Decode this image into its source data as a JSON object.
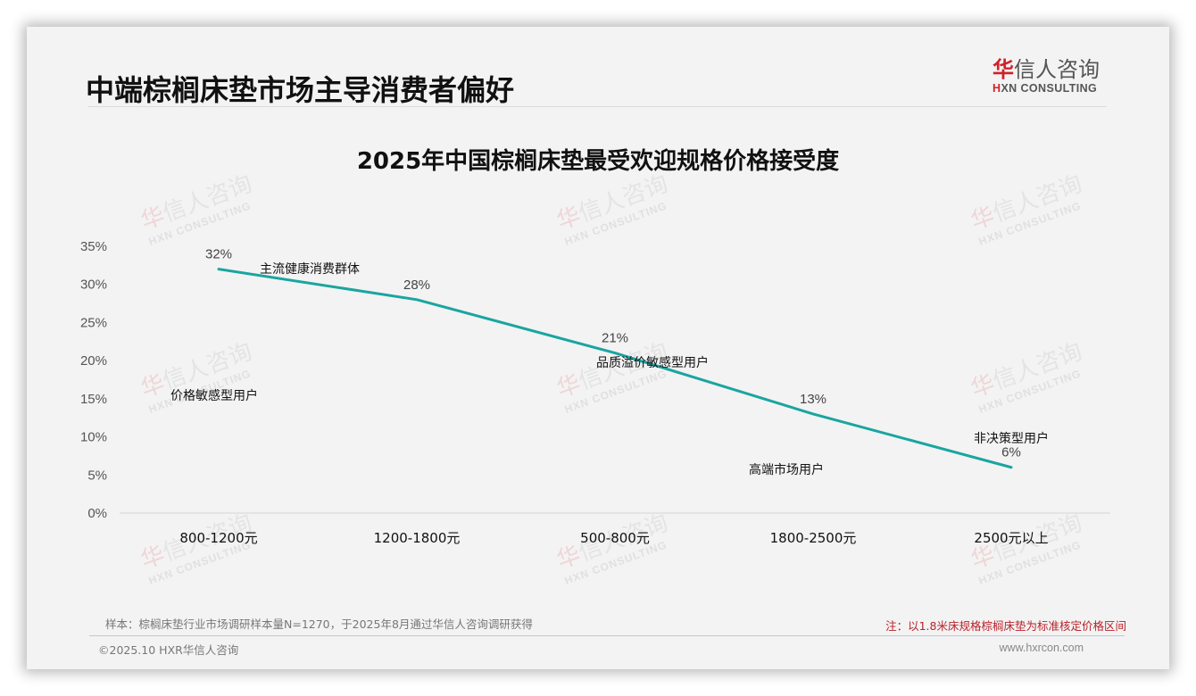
{
  "header": {
    "page_title": "中端棕榈床垫市场主导消费者偏好",
    "logo": {
      "cn_first": "华",
      "cn_rest": "信人咨询",
      "en_prefix": "H",
      "en_rest": "XN CONSULTING"
    }
  },
  "watermark": {
    "cn_first": "华",
    "cn_rest": "信人咨询",
    "en": "HXN CONSULTING"
  },
  "chart_data": {
    "type": "line",
    "title": "2025年中国棕榈床垫最受欢迎规格价格接受度",
    "xlabel": "",
    "ylabel": "",
    "categories": [
      "800-1200元",
      "1200-1800元",
      "500-800元",
      "1800-2500元",
      "2500元以上"
    ],
    "series": [
      {
        "name": "价格接受度",
        "values": [
          32,
          28,
          21,
          13,
          6
        ],
        "color": "#1aa5a0"
      }
    ],
    "data_labels": [
      "32%",
      "28%",
      "21%",
      "13%",
      "6%"
    ],
    "yticks": [
      "0%",
      "5%",
      "10%",
      "15%",
      "20%",
      "25%",
      "30%",
      "35%"
    ],
    "ylim": [
      0,
      35
    ],
    "grid": false,
    "legend": "none",
    "annotations": [
      {
        "text": "价格敏感型用户",
        "category": "800-1200元"
      },
      {
        "text": "主流健康消费群体",
        "category": "1200-1800元"
      },
      {
        "text": "品质溢价敏感型用户",
        "category": "500-800元"
      },
      {
        "text": "高端市场用户",
        "category": "1800-2500元"
      },
      {
        "text": "非决策型用户",
        "category": "2500元以上"
      }
    ]
  },
  "footer": {
    "sample_note": "样本：棕榈床垫行业市场调研样本量N=1270，于2025年8月通过华信人咨询调研获得",
    "red_note": "注：以1.8米床规格棕榈床垫为标准核定价格区间",
    "copyright": "©2025.10 HXR华信人咨询",
    "website": "www.hxrcon.com"
  },
  "colors": {
    "line": "#1aa5a0",
    "accent_red": "#d0202a",
    "note_red": "#b8222a",
    "background": "#f3f3f3"
  }
}
